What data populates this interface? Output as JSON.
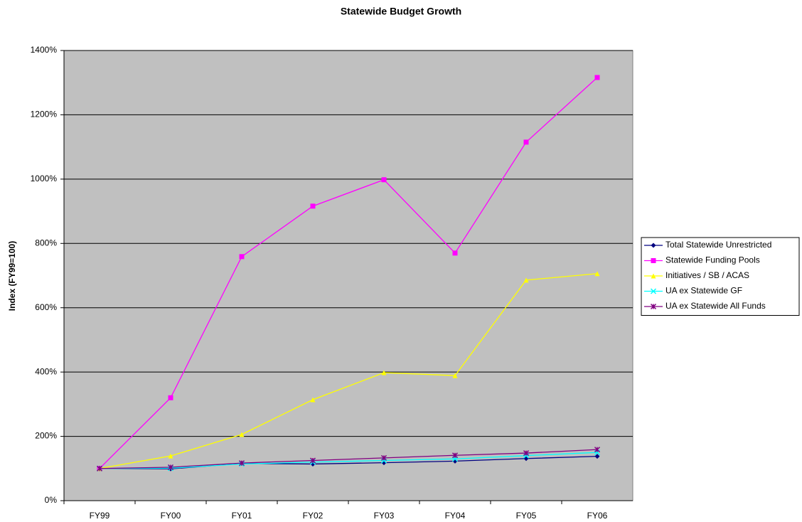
{
  "chart_data": {
    "type": "line",
    "title": "Statewide Budget Growth",
    "y_label": "Index (FY99=100)",
    "categories": [
      "FY99",
      "FY00",
      "FY01",
      "FY02",
      "FY03",
      "FY04",
      "FY05",
      "FY06"
    ],
    "series": [
      {
        "name": "Total Statewide Unrestricted",
        "color": "#000080",
        "marker": "diamond",
        "values": [
          100,
          99,
          116,
          114,
          118,
          123,
          131,
          138
        ]
      },
      {
        "name": "Statewide Funding Pools",
        "color": "#ff00ff",
        "marker": "square",
        "values": [
          100,
          320,
          759,
          916,
          998,
          770,
          1115,
          1316
        ]
      },
      {
        "name": "Initiatives / SB / ACAS",
        "color": "#ffff00",
        "marker": "triangle",
        "values": [
          100,
          139,
          206,
          314,
          398,
          389,
          686,
          706
        ]
      },
      {
        "name": "UA ex Statewide GF",
        "color": "#00ffff",
        "marker": "x",
        "values": [
          100,
          101,
          114,
          120,
          125,
          130,
          140,
          150
        ]
      },
      {
        "name": "UA ex Statewide All Funds",
        "color": "#800080",
        "marker": "star",
        "values": [
          100,
          104,
          117,
          125,
          133,
          141,
          148,
          159
        ]
      }
    ],
    "ylim": [
      0,
      1400
    ],
    "yticks": [
      {
        "value": 0,
        "label": "0%"
      },
      {
        "value": 200,
        "label": "200%"
      },
      {
        "value": 400,
        "label": "400%"
      },
      {
        "value": 600,
        "label": "600%"
      },
      {
        "value": 800,
        "label": "800%"
      },
      {
        "value": 1000,
        "label": "1000%"
      },
      {
        "value": 1200,
        "label": "1200%"
      },
      {
        "value": 1400,
        "label": "1400%"
      }
    ],
    "grid": true,
    "legend": "right",
    "plot_background": "#c0c0c0"
  }
}
